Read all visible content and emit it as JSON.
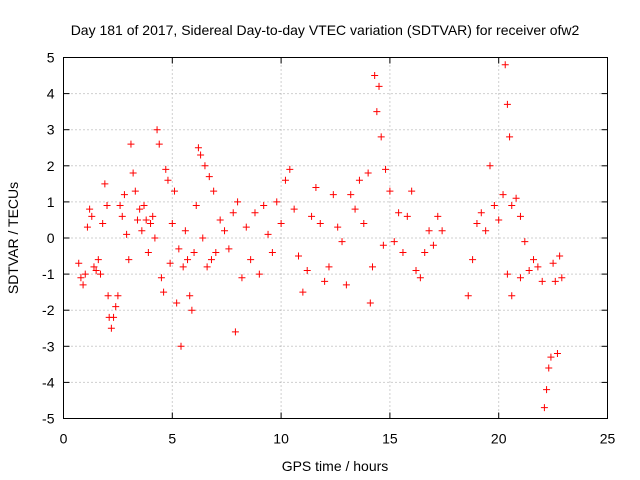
{
  "chart_data": {
    "type": "scatter",
    "title": "Day 181 of 2017, Sidereal Day-to-day VTEC variation (SDTVAR) for receiver ofw2",
    "xlabel": "GPS time / hours",
    "ylabel": "SDTVAR / TECUs",
    "xlim": [
      0,
      25
    ],
    "ylim": [
      -5,
      5
    ],
    "xticks": [
      0,
      5,
      10,
      15,
      20,
      25
    ],
    "yticks": [
      -5,
      -4,
      -3,
      -2,
      -1,
      0,
      1,
      2,
      3,
      4,
      5
    ],
    "grid": true,
    "marker": "+",
    "color": "#ff0000",
    "series": [
      {
        "name": "SDTVAR",
        "points": [
          [
            0.7,
            -0.7
          ],
          [
            0.8,
            -1.1
          ],
          [
            0.9,
            -1.3
          ],
          [
            1.0,
            -1.0
          ],
          [
            1.1,
            0.3
          ],
          [
            1.2,
            0.8
          ],
          [
            1.3,
            0.6
          ],
          [
            1.4,
            -0.8
          ],
          [
            1.5,
            -0.9
          ],
          [
            1.6,
            -0.6
          ],
          [
            1.7,
            -1.0
          ],
          [
            1.8,
            0.4
          ],
          [
            1.9,
            1.5
          ],
          [
            2.0,
            0.9
          ],
          [
            2.05,
            -1.6
          ],
          [
            2.1,
            -2.2
          ],
          [
            2.2,
            -2.5
          ],
          [
            2.3,
            -2.2
          ],
          [
            2.4,
            -1.9
          ],
          [
            2.5,
            -1.6
          ],
          [
            2.6,
            0.9
          ],
          [
            2.7,
            0.6
          ],
          [
            2.8,
            1.2
          ],
          [
            2.9,
            0.1
          ],
          [
            3.0,
            -0.6
          ],
          [
            3.1,
            2.6
          ],
          [
            3.2,
            1.8
          ],
          [
            3.3,
            1.3
          ],
          [
            3.4,
            0.5
          ],
          [
            3.5,
            0.8
          ],
          [
            3.6,
            0.2
          ],
          [
            3.7,
            0.9
          ],
          [
            3.8,
            0.5
          ],
          [
            3.9,
            -0.4
          ],
          [
            4.0,
            0.4
          ],
          [
            4.1,
            0.6
          ],
          [
            4.2,
            0.0
          ],
          [
            4.3,
            3.0
          ],
          [
            4.4,
            2.6
          ],
          [
            4.5,
            -1.1
          ],
          [
            4.6,
            -1.5
          ],
          [
            4.7,
            1.9
          ],
          [
            4.8,
            1.6
          ],
          [
            4.9,
            -0.7
          ],
          [
            5.0,
            0.4
          ],
          [
            5.1,
            1.3
          ],
          [
            5.2,
            -1.8
          ],
          [
            5.3,
            -0.3
          ],
          [
            5.4,
            -3.0
          ],
          [
            5.5,
            -0.8
          ],
          [
            5.6,
            0.2
          ],
          [
            5.7,
            -0.6
          ],
          [
            5.8,
            -1.6
          ],
          [
            5.9,
            -2.0
          ],
          [
            6.0,
            -0.4
          ],
          [
            6.1,
            0.9
          ],
          [
            6.2,
            2.5
          ],
          [
            6.3,
            2.3
          ],
          [
            6.4,
            0.0
          ],
          [
            6.5,
            2.0
          ],
          [
            6.6,
            -0.8
          ],
          [
            6.7,
            1.7
          ],
          [
            6.8,
            -0.6
          ],
          [
            6.9,
            1.3
          ],
          [
            7.0,
            -0.4
          ],
          [
            7.2,
            0.5
          ],
          [
            7.4,
            0.2
          ],
          [
            7.6,
            -0.3
          ],
          [
            7.8,
            0.7
          ],
          [
            7.9,
            -2.6
          ],
          [
            8.0,
            1.0
          ],
          [
            8.2,
            -1.1
          ],
          [
            8.4,
            0.3
          ],
          [
            8.6,
            -0.6
          ],
          [
            8.8,
            0.7
          ],
          [
            9.0,
            -1.0
          ],
          [
            9.2,
            0.9
          ],
          [
            9.4,
            0.1
          ],
          [
            9.6,
            -0.4
          ],
          [
            9.8,
            1.0
          ],
          [
            10.0,
            0.4
          ],
          [
            10.2,
            1.6
          ],
          [
            10.4,
            1.9
          ],
          [
            10.6,
            0.8
          ],
          [
            10.8,
            -0.5
          ],
          [
            11.0,
            -1.5
          ],
          [
            11.2,
            -0.9
          ],
          [
            11.4,
            0.6
          ],
          [
            11.6,
            1.4
          ],
          [
            11.8,
            0.4
          ],
          [
            12.0,
            -1.2
          ],
          [
            12.2,
            -0.8
          ],
          [
            12.4,
            1.2
          ],
          [
            12.6,
            0.3
          ],
          [
            12.8,
            -0.1
          ],
          [
            13.0,
            -1.3
          ],
          [
            13.2,
            1.2
          ],
          [
            13.4,
            0.8
          ],
          [
            13.6,
            1.6
          ],
          [
            13.8,
            0.4
          ],
          [
            14.0,
            1.8
          ],
          [
            14.1,
            -1.8
          ],
          [
            14.2,
            -0.8
          ],
          [
            14.3,
            4.5
          ],
          [
            14.4,
            3.5
          ],
          [
            14.5,
            4.2
          ],
          [
            14.6,
            2.8
          ],
          [
            14.7,
            -0.2
          ],
          [
            14.8,
            1.9
          ],
          [
            15.0,
            1.3
          ],
          [
            15.2,
            -0.1
          ],
          [
            15.4,
            0.7
          ],
          [
            15.6,
            -0.4
          ],
          [
            15.8,
            0.6
          ],
          [
            16.0,
            1.3
          ],
          [
            16.2,
            -0.9
          ],
          [
            16.4,
            -1.1
          ],
          [
            16.6,
            -0.4
          ],
          [
            16.8,
            0.2
          ],
          [
            17.0,
            -0.2
          ],
          [
            17.2,
            0.6
          ],
          [
            17.4,
            0.2
          ],
          [
            18.6,
            -1.6
          ],
          [
            18.8,
            -0.6
          ],
          [
            19.0,
            0.4
          ],
          [
            19.2,
            0.7
          ],
          [
            19.4,
            0.2
          ],
          [
            19.6,
            2.0
          ],
          [
            19.8,
            0.9
          ],
          [
            20.0,
            0.5
          ],
          [
            20.2,
            1.2
          ],
          [
            20.3,
            4.8
          ],
          [
            20.4,
            3.7
          ],
          [
            20.5,
            2.8
          ],
          [
            20.6,
            0.9
          ],
          [
            20.8,
            1.1
          ],
          [
            21.0,
            0.6
          ],
          [
            20.4,
            -1.0
          ],
          [
            20.6,
            -1.6
          ],
          [
            21.0,
            -1.1
          ],
          [
            21.2,
            -0.1
          ],
          [
            21.4,
            -0.9
          ],
          [
            21.6,
            -0.6
          ],
          [
            21.8,
            -0.8
          ],
          [
            22.0,
            -1.2
          ],
          [
            22.1,
            -4.7
          ],
          [
            22.2,
            -4.2
          ],
          [
            22.3,
            -3.6
          ],
          [
            22.4,
            -3.3
          ],
          [
            22.5,
            -0.7
          ],
          [
            22.6,
            -1.2
          ],
          [
            22.7,
            -3.2
          ],
          [
            22.8,
            -0.5
          ],
          [
            22.9,
            -1.1
          ]
        ]
      }
    ]
  }
}
